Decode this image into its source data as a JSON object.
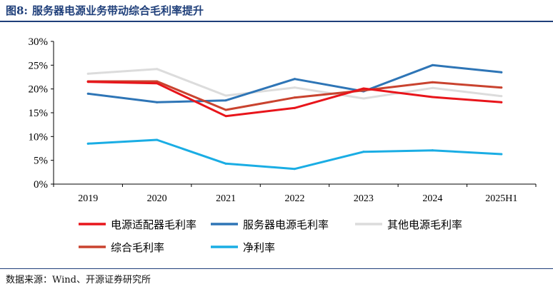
{
  "figure": {
    "number": "图8:",
    "title": "服务器电源业务带动综合毛利率提升",
    "source": "数据来源：Wind、开源证券研究所"
  },
  "chart_data": {
    "type": "line",
    "title": "服务器电源业务带动综合毛利率提升",
    "xlabel": "",
    "ylabel": "",
    "categories": [
      "2019",
      "2020",
      "2021",
      "2022",
      "2023",
      "2024",
      "2025H1"
    ],
    "ylim": [
      0,
      30
    ],
    "yticks": [
      "0%",
      "5%",
      "10%",
      "15%",
      "20%",
      "25%",
      "30%"
    ],
    "grid": false,
    "legend_position": "bottom",
    "series": [
      {
        "name": "电源适配器毛利率",
        "color": "#e8151b",
        "values": [
          21.5,
          21.2,
          14.3,
          16.0,
          20.1,
          18.3,
          17.2
        ]
      },
      {
        "name": "服务器电源毛利率",
        "color": "#2e75b6",
        "values": [
          19.0,
          17.2,
          17.6,
          22.1,
          19.5,
          25.0,
          23.5
        ]
      },
      {
        "name": "其他电源毛利率",
        "color": "#dcdcdc",
        "values": [
          23.2,
          24.2,
          18.6,
          20.3,
          18.0,
          20.2,
          18.5
        ]
      },
      {
        "name": "综合毛利率",
        "color": "#c9432f",
        "values": [
          21.6,
          21.6,
          15.6,
          18.2,
          19.7,
          21.4,
          20.3
        ]
      },
      {
        "name": "净利率",
        "color": "#1aade4",
        "values": [
          8.5,
          9.3,
          4.3,
          3.2,
          6.8,
          7.1,
          6.3
        ]
      }
    ]
  }
}
